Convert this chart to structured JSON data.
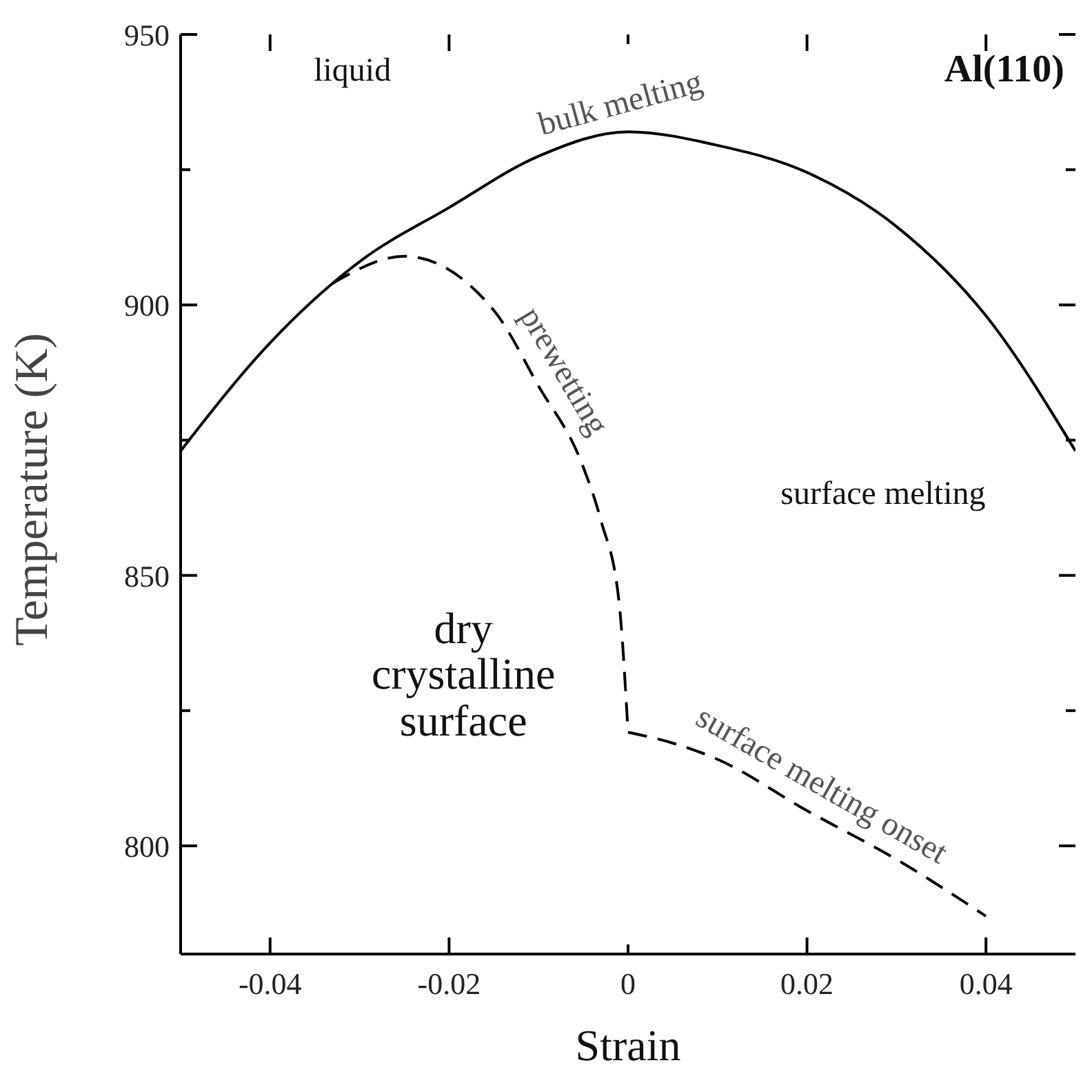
{
  "chart_data": {
    "type": "line",
    "title": "Al(110)",
    "xlabel": "Strain",
    "ylabel": "Temperature (K)",
    "xlim": [
      -0.05,
      0.05
    ],
    "xticks": [
      -0.04,
      -0.02,
      0,
      0.02,
      0.04
    ],
    "ylim": [
      780,
      950
    ],
    "yticks": [
      800,
      {
        "value": 825,
        "label": null
      },
      850,
      {
        "value": 875,
        "label": null
      },
      900,
      {
        "value": 925,
        "label": null
      },
      950
    ],
    "series": [
      {
        "color": "#000000",
        "line_style": "solid",
        "x": [
          -0.05,
          -0.04,
          -0.03,
          -0.02,
          -0.01,
          0,
          0.01,
          0.02,
          0.03,
          0.04,
          0.05
        ],
        "values": [
          873,
          893,
          908,
          918,
          927.5,
          932,
          929.5,
          924.5,
          914.5,
          898,
          873
        ]
      },
      {
        "color": "#000000",
        "line_style": "dashed",
        "x": [
          -0.033,
          -0.025,
          -0.015,
          -0.01,
          -0.005,
          -0.003,
          -0.001,
          0
        ],
        "values": [
          904,
          909,
          899,
          885,
          870,
          860,
          845,
          821
        ]
      },
      {
        "color": "#000000",
        "line_style": "dashed",
        "x": [
          0,
          0.005,
          0.01,
          0.02,
          0.03,
          0.04
        ],
        "values": [
          821,
          819,
          816,
          806.5,
          797.5,
          787
        ]
      }
    ],
    "annotations": [
      "liquid",
      {
        "text": "bulk melting",
        "x": 0,
        "y": 932
      },
      {
        "text": "prewetting",
        "x": -0.01,
        "y": 885
      },
      "surface melting",
      "dry\ncrystalline\nsurface",
      {
        "text": "surface melting onset",
        "x": 0.02,
        "y": 806.5
      }
    ]
  }
}
